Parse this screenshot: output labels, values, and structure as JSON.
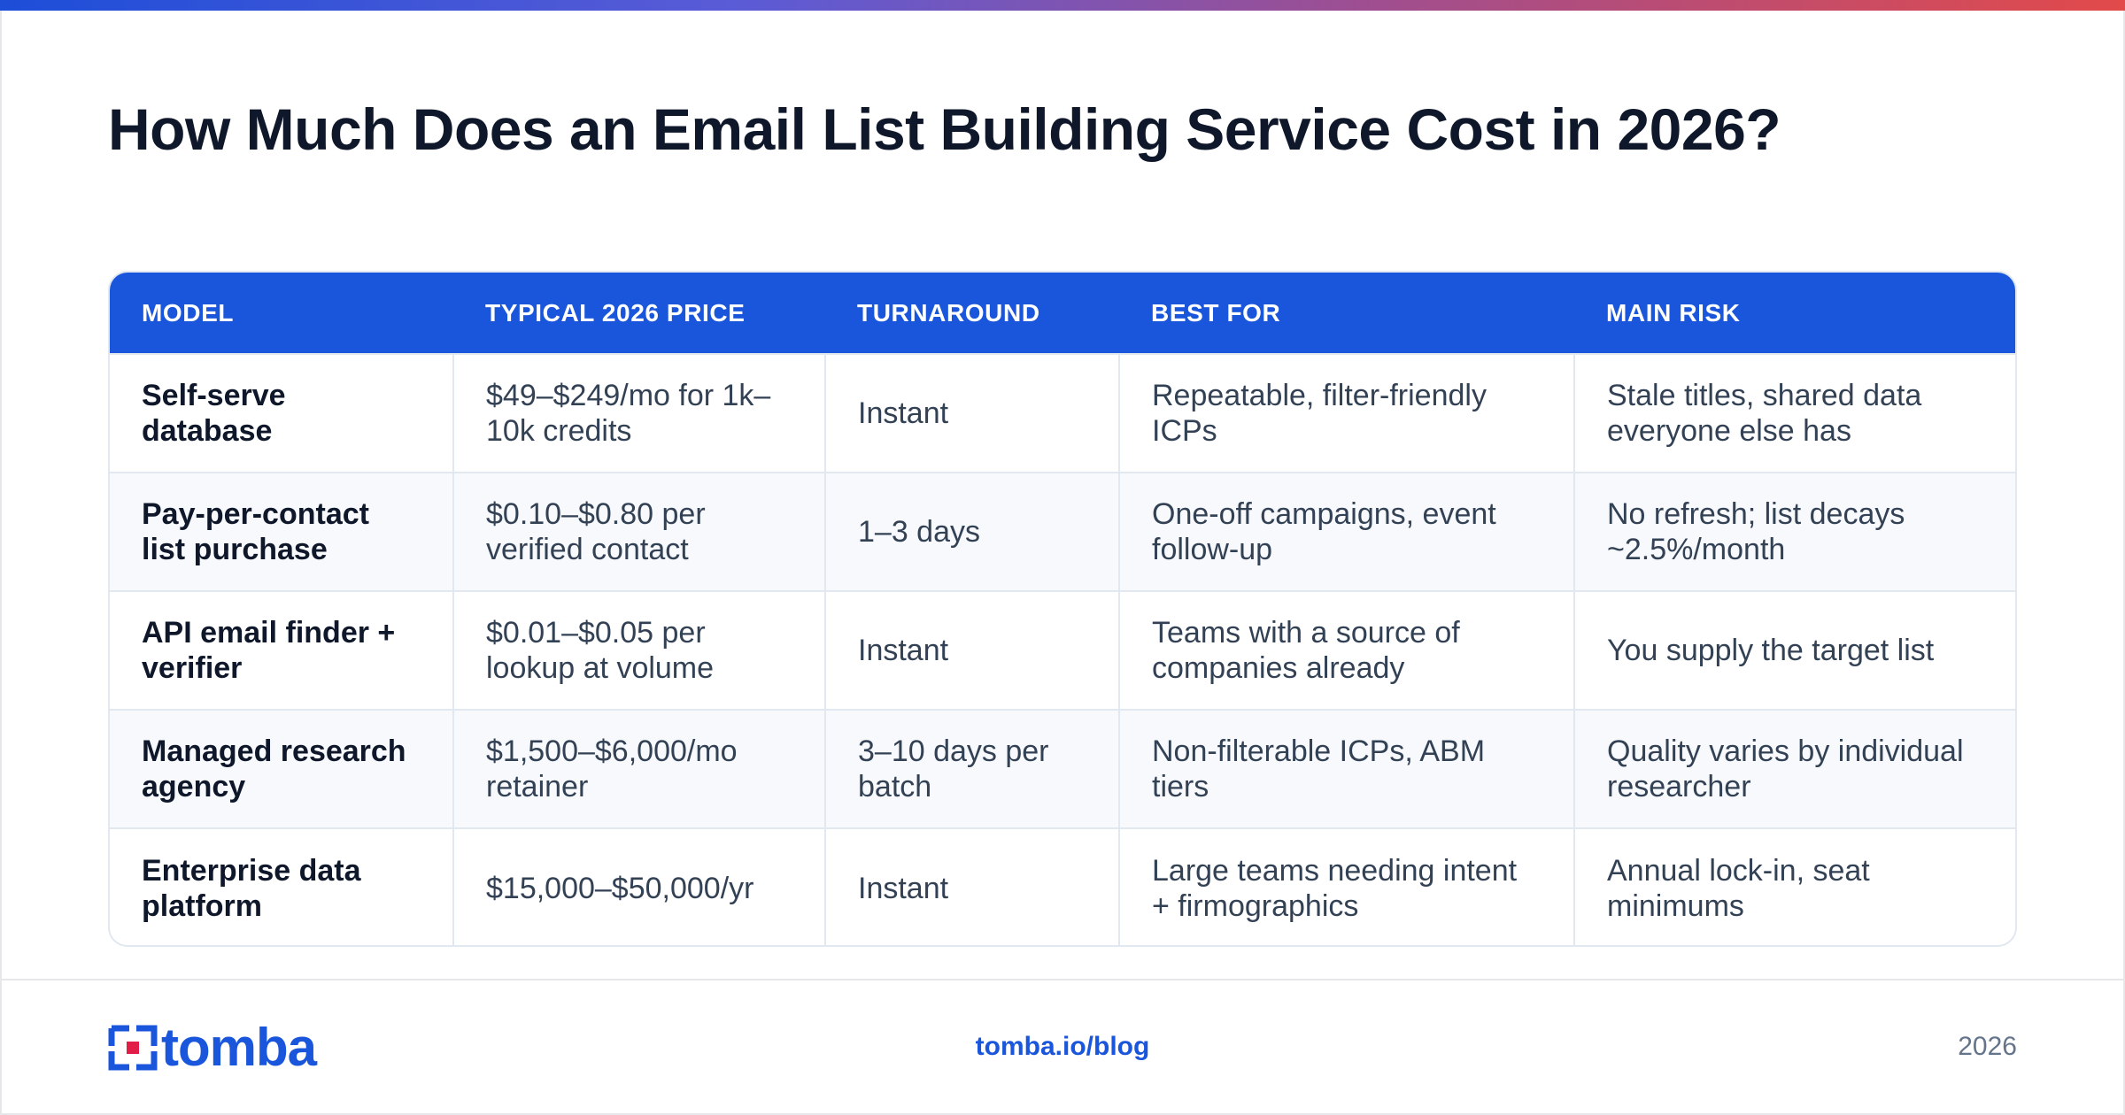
{
  "title": "How Much Does an Email List Building Service Cost in 2026?",
  "table": {
    "headers": [
      "Model",
      "Typical 2026 Price",
      "Turnaround",
      "Best For",
      "Main Risk"
    ],
    "rows": [
      [
        "Self-serve database",
        "$49–$249/mo for 1k–10k credits",
        "Instant",
        "Repeatable, filter-friendly ICPs",
        "Stale titles, shared data everyone else has"
      ],
      [
        "Pay-per-contact list purchase",
        "$0.10–$0.80 per verified contact",
        "1–3 days",
        "One-off campaigns, event follow-up",
        "No refresh; list decays ~2.5%/month"
      ],
      [
        "API email finder + verifier",
        "$0.01–$0.05 per lookup at volume",
        "Instant",
        "Teams with a source of companies already",
        "You supply the target list"
      ],
      [
        "Managed research agency",
        "$1,500–$6,000/mo retainer",
        "3–10 days per batch",
        "Non-filterable ICPs, ABM tiers",
        "Quality varies by individual researcher"
      ],
      [
        "Enterprise data platform",
        "$15,000–$50,000/yr",
        "Instant",
        "Large teams needing intent + firmographics",
        "Annual lock-in, seat minimums"
      ]
    ]
  },
  "footer": {
    "logo_text": "tomba",
    "link": "tomba.io/blog",
    "year": "2026"
  },
  "colors": {
    "accent": "#1a56db",
    "title": "#0f172a",
    "body_text": "#334155",
    "muted": "#64748b"
  }
}
